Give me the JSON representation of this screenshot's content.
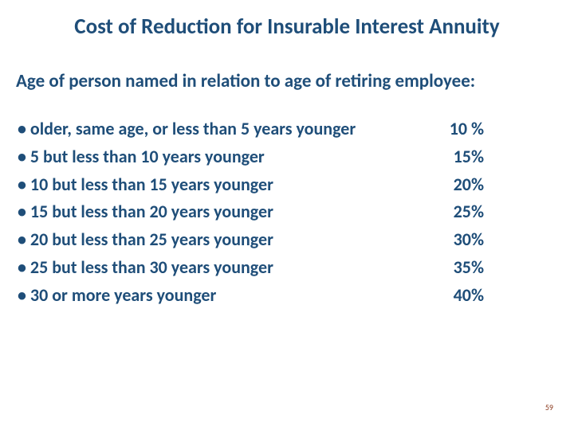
{
  "title": "Cost of Reduction for Insurable Interest Annuity",
  "subtitle": "Age of person named in relation to age of retiring employee:",
  "rows": [
    {
      "label": "• older, same age, or less than 5 years younger",
      "value": "10 %"
    },
    {
      "label": "• 5 but less than 10 years younger",
      "value": "15%"
    },
    {
      "label": "• 10 but less than 15 years younger",
      "value": "20%"
    },
    {
      "label": "• 15 but less than 20 years younger",
      "value": "25%"
    },
    {
      "label": "• 20 but less than 25 years younger",
      "value": "30%"
    },
    {
      "label": "• 25 but less than 30 years younger",
      "value": "35%"
    },
    {
      "label": "• 30 or more years younger",
      "value": "40%"
    }
  ],
  "page_number": "59",
  "colors": {
    "text": "#1f4e79",
    "pagenum": "#8b3a1e",
    "background": "#ffffff"
  },
  "typography": {
    "title_fontsize": 27,
    "subtitle_fontsize": 23,
    "body_fontsize": 22,
    "weight": "bold"
  }
}
